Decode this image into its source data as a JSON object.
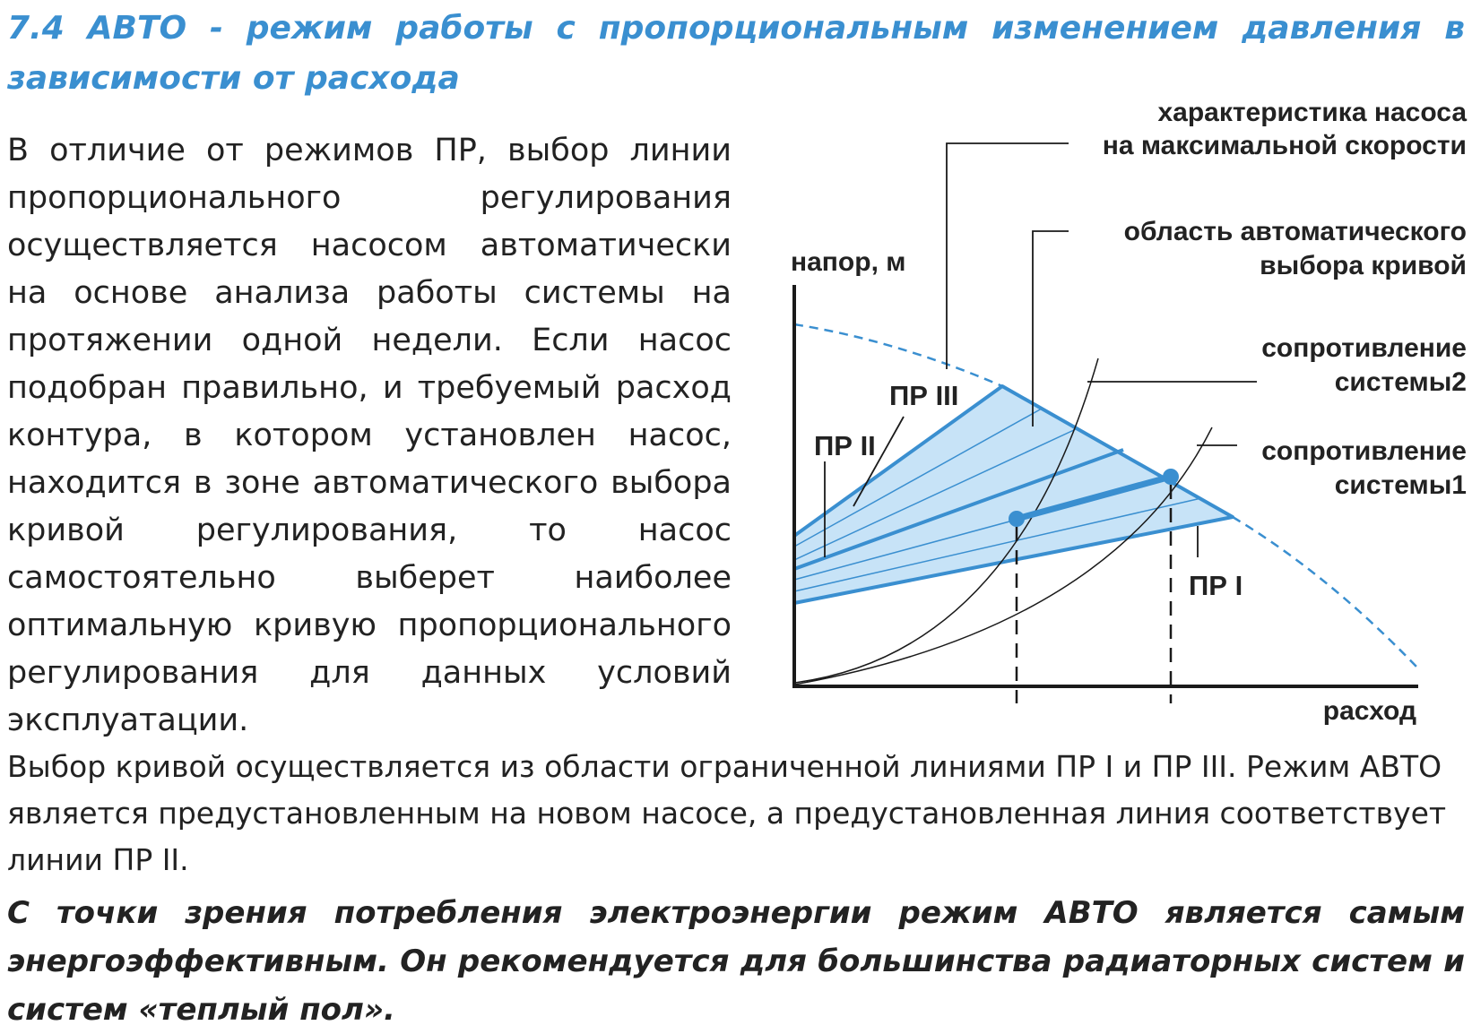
{
  "section": {
    "title": "7.4 АВТО - режим работы с пропорциональным изменением давления в зависимости от расхода"
  },
  "intro_paragraph": "В отличие от режимов ПР, выбор линии пропорционального регулирования осуществляется насосом автоматически на основе анализа работы системы на протяжении одной недели. Если насос подобран правильно, и требуемый расход контура, в котором установлен насос, находится в зоне автоматического выбора кривой регулирования, то насос самостоятельно выберет наиболее оптимальную кривую пропорционального регулирования для данных условий эксплуатации.",
  "body_paragraph": "Выбор кривой осуществляется из области ограниченной линиями ПР I и ПР III. Режим АВТО является предустановленным на новом насосе, а предустановленная линия соответствует линии ПР II.",
  "bold_paragraph": "С точки зрения потребления электроэнергии режим АВТО является самым энергоэффективным. Он рекомендуется для большинства радиаторных систем и систем «теплый пол».",
  "diagram": {
    "y_axis_label": "напор, м",
    "x_axis_label": "расход",
    "labels": {
      "max_speed": [
        "характеристика насоса",
        "на максимальной скорости"
      ],
      "auto_area": [
        "область автоматического",
        "выбора кривой"
      ],
      "resistance_2": [
        "сопротивление",
        "системы2"
      ],
      "resistance_1": [
        "сопротивление",
        "системы1"
      ],
      "pr1": "ПР I",
      "pr2": "ПР II",
      "pr3": "ПР III"
    },
    "colors": {
      "accent": "#3a8fd0",
      "area_fill": "#c7e3f7",
      "ink": "#1a1a1a"
    }
  }
}
